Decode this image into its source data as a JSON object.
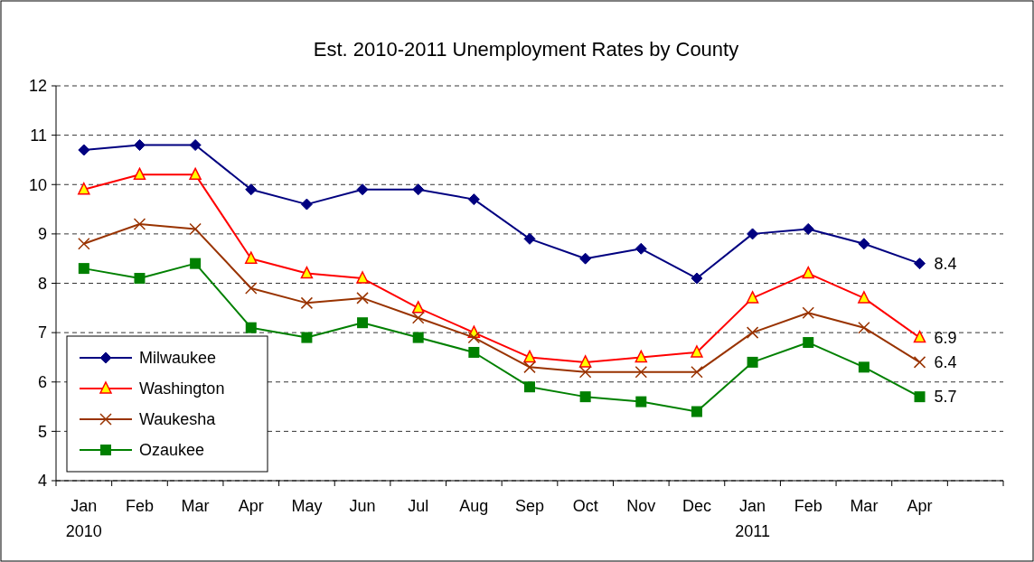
{
  "chart_data": {
    "type": "line",
    "title": "Est. 2010-2011 Unemployment Rates by County",
    "categories": [
      "Jan\n2010",
      "Feb",
      "Mar",
      "Apr",
      "May",
      "Jun",
      "Jul",
      "Aug",
      "Sep",
      "Oct",
      "Nov",
      "Dec",
      "Jan\n2011",
      "Feb",
      "Mar",
      "Apr",
      null
    ],
    "series": [
      {
        "name": "Milwaukee",
        "color": "#000080",
        "marker": "diamond",
        "values": [
          10.7,
          10.8,
          10.8,
          9.9,
          9.6,
          9.9,
          9.9,
          9.7,
          8.9,
          8.5,
          8.7,
          8.1,
          9.0,
          9.1,
          8.8,
          8.4,
          null
        ]
      },
      {
        "name": "Washington",
        "color": "#ff0000",
        "marker": "triangle",
        "values": [
          9.9,
          10.2,
          10.2,
          8.5,
          8.2,
          8.1,
          7.5,
          7.0,
          6.5,
          6.4,
          6.5,
          6.6,
          7.7,
          8.2,
          7.7,
          6.9,
          null
        ]
      },
      {
        "name": "Waukesha",
        "color": "#993300",
        "marker": "cross",
        "values": [
          8.8,
          9.2,
          9.1,
          7.9,
          7.6,
          7.7,
          7.3,
          6.9,
          6.3,
          6.2,
          6.2,
          6.2,
          7.0,
          7.4,
          7.1,
          6.4,
          null
        ]
      },
      {
        "name": "Ozaukee",
        "color": "#008000",
        "marker": "square",
        "values": [
          8.3,
          8.1,
          8.4,
          7.1,
          6.9,
          7.2,
          6.9,
          6.6,
          5.9,
          5.7,
          5.6,
          5.4,
          6.4,
          6.8,
          6.3,
          5.7,
          null
        ]
      }
    ],
    "annotations": [
      "8.4",
      "6.9",
      "6.4",
      "5.7"
    ],
    "ylim": [
      4,
      12
    ],
    "yticks": [
      4,
      5,
      6,
      7,
      8,
      9,
      10,
      11,
      12
    ],
    "grid": "y",
    "legend": "bottom left",
    "line_style": "solid"
  }
}
